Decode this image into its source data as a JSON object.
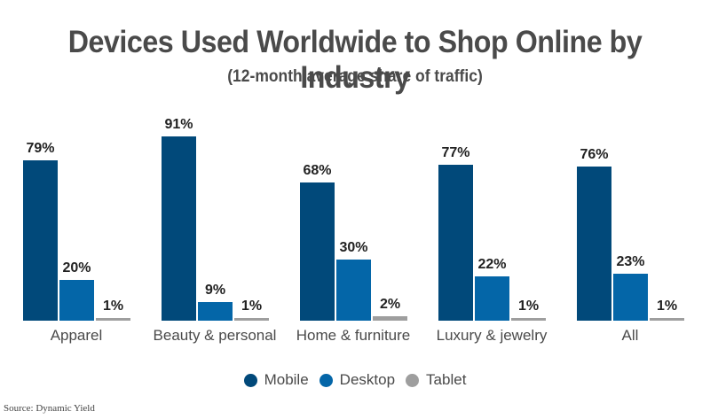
{
  "title": "Devices Used Worldwide to Shop Online by Industry",
  "subtitle": "(12-month average share of traffic)",
  "source": "Source: Dynamic Yield",
  "legend": [
    {
      "label": "Mobile",
      "color": "#01497a"
    },
    {
      "label": "Desktop",
      "color": "#0466a8"
    },
    {
      "label": "Tablet",
      "color": "#9e9e9e"
    }
  ],
  "chart_data": {
    "type": "bar",
    "title": "Devices Used Worldwide to Shop Online by Industry",
    "subtitle": "(12-month average share of traffic)",
    "xlabel": "",
    "ylabel": "",
    "ylim": [
      0,
      100
    ],
    "grid": false,
    "legend_position": "bottom",
    "categories": [
      "Apparel",
      "Beauty & personal",
      "Home & furniture",
      "Luxury & jewelry",
      "All"
    ],
    "series": [
      {
        "name": "Mobile",
        "color": "#01497a",
        "values": [
          79,
          91,
          68,
          77,
          76
        ],
        "labels": [
          "79%",
          "91%",
          "68%",
          "77%",
          "76%"
        ]
      },
      {
        "name": "Desktop",
        "color": "#0466a8",
        "values": [
          20,
          9,
          30,
          22,
          23
        ],
        "labels": [
          "20%",
          "9%",
          "30%",
          "22%",
          "23%"
        ]
      },
      {
        "name": "Tablet",
        "color": "#9e9e9e",
        "values": [
          1,
          1,
          2,
          1,
          1
        ],
        "labels": [
          "1%",
          "1%",
          "2%",
          "1%",
          "1%"
        ]
      }
    ]
  }
}
